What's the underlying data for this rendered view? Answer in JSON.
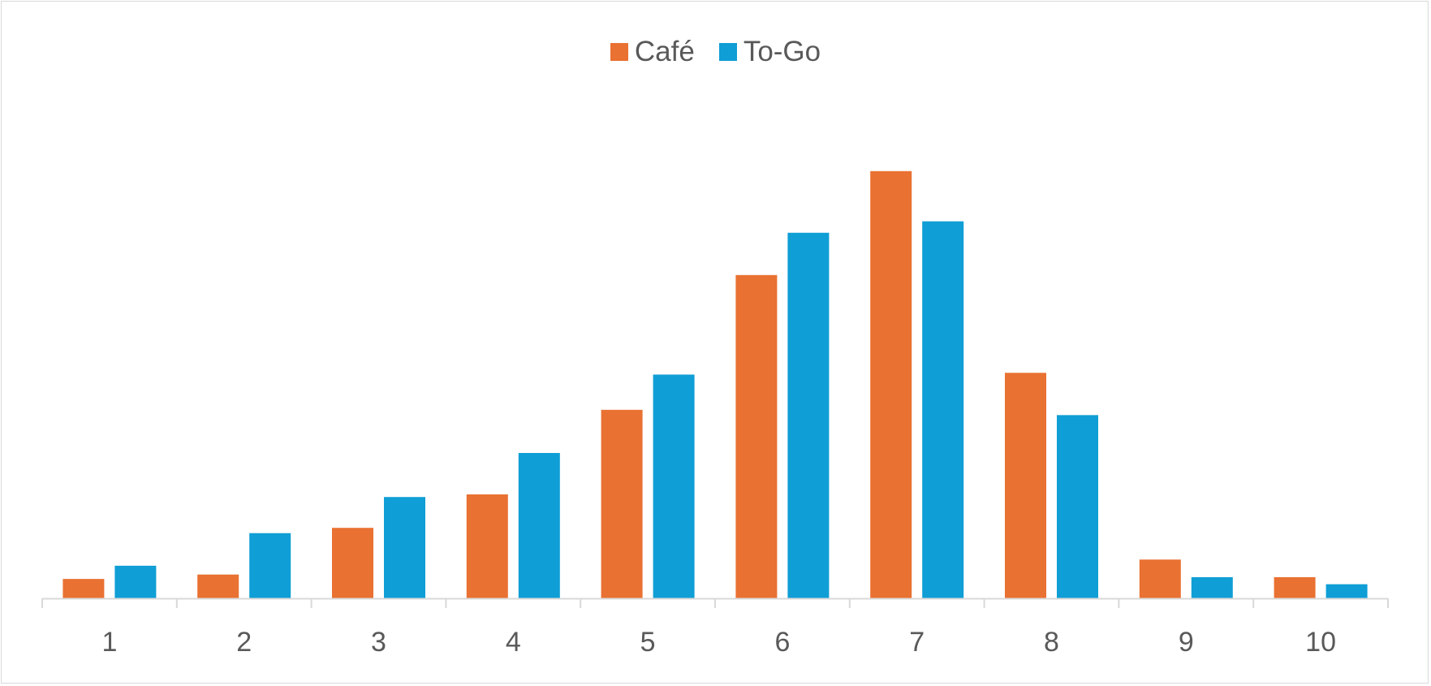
{
  "chart_data": {
    "type": "bar",
    "title": "",
    "xlabel": "",
    "ylabel": "",
    "categories": [
      "1",
      "2",
      "3",
      "4",
      "5",
      "6",
      "7",
      "8",
      "9",
      "10"
    ],
    "series": [
      {
        "name": "Café",
        "color": "#E97132",
        "values": [
          22,
          27,
          80,
          118,
          214,
          367,
          485,
          256,
          44,
          24
        ]
      },
      {
        "name": "To-Go",
        "color": "#0F9ED5",
        "values": [
          37,
          74,
          115,
          165,
          254,
          415,
          428,
          208,
          24,
          16
        ]
      }
    ],
    "ylim": [
      0,
      600
    ],
    "grid": false,
    "legend_position": "top"
  }
}
